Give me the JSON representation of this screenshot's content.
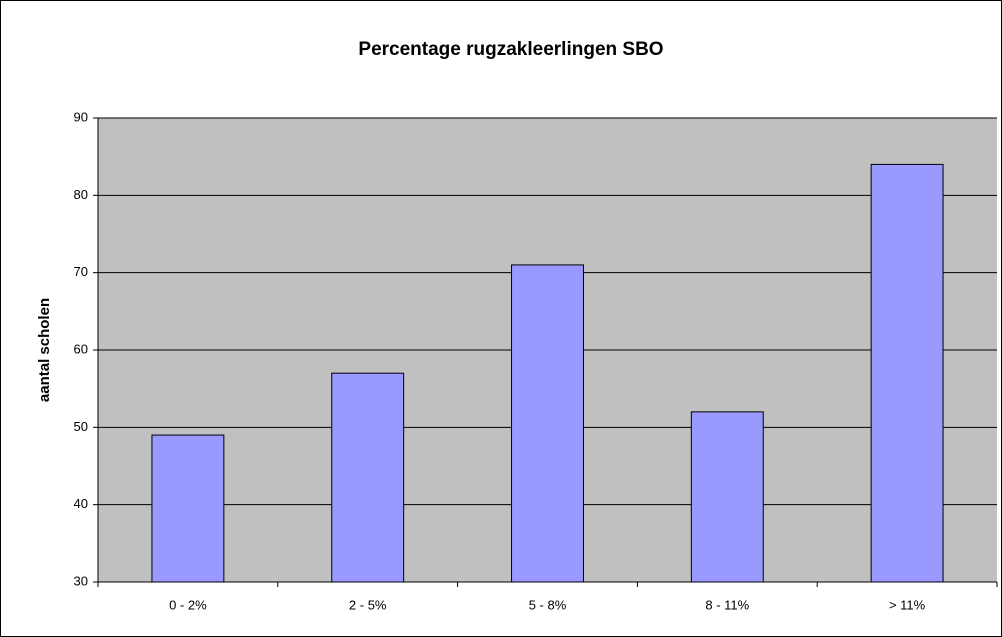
{
  "chart_data": {
    "type": "bar",
    "title": "Percentage rugzakleerlingen SBO",
    "y_label": "aantal scholen",
    "categories": [
      "0 - 2%",
      "2 - 5%",
      "5 - 8%",
      "8 - 11%",
      "> 11%"
    ],
    "values": [
      49,
      57,
      71,
      52,
      84
    ],
    "color": "#9999ff",
    "ylim": [
      30,
      90
    ],
    "yticks": [
      30,
      40,
      50,
      60,
      70,
      80,
      90
    ],
    "grid": true
  }
}
